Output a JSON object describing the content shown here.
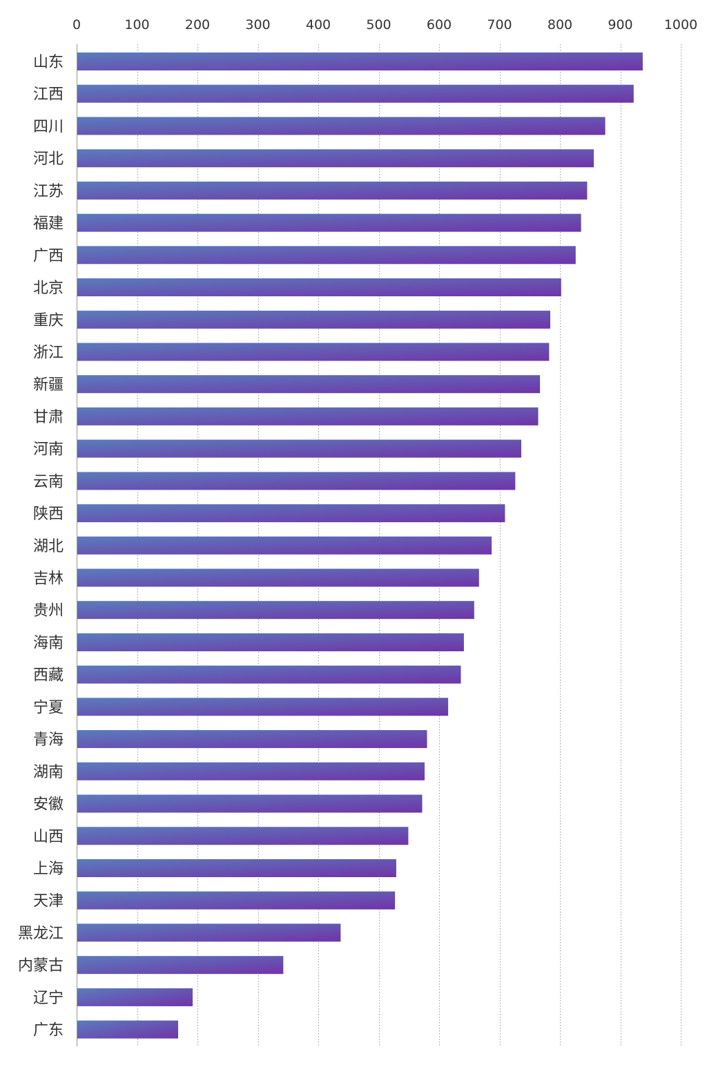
{
  "chart_data": {
    "type": "bar",
    "orientation": "horizontal",
    "categories": [
      "山东",
      "江西",
      "四川",
      "河北",
      "江苏",
      "福建",
      "广西",
      "北京",
      "重庆",
      "浙江",
      "新疆",
      "甘肃",
      "河南",
      "云南",
      "陕西",
      "湖北",
      "吉林",
      "贵州",
      "海南",
      "西藏",
      "宁夏",
      "青海",
      "湖南",
      "安徽",
      "山西",
      "上海",
      "天津",
      "黑龙江",
      "内蒙古",
      "辽宁",
      "广东"
    ],
    "values": [
      937,
      922,
      875,
      856,
      845,
      835,
      826,
      802,
      784,
      782,
      767,
      764,
      736,
      726,
      709,
      687,
      666,
      658,
      641,
      636,
      615,
      580,
      576,
      572,
      549,
      529,
      527,
      437,
      342,
      192,
      168
    ],
    "xlim": [
      0,
      1000
    ],
    "x_ticks": [
      0,
      100,
      200,
      300,
      400,
      500,
      600,
      700,
      800,
      900,
      1000
    ],
    "x_tick_labels": [
      "0",
      "100",
      "200",
      "300",
      "400",
      "500",
      "600",
      "700",
      "800",
      "900",
      "1000"
    ],
    "x_axis_position": "top",
    "grid": "vertical-dotted",
    "legend": "none",
    "title": "",
    "xlabel": "",
    "ylabel": "",
    "colors": {
      "bar_start": "#5a7cbd",
      "bar_end": "#7034a8",
      "grid": "#999999",
      "text": "#333333"
    }
  }
}
